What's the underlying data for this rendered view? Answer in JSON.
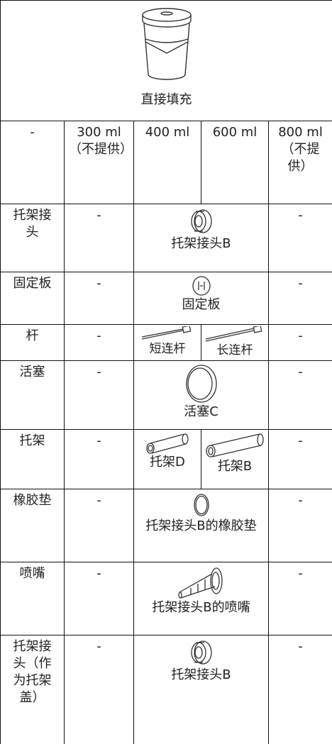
{
  "header": {
    "caption": "直接填充"
  },
  "table": {
    "columns": [
      "-",
      "300 ml（不提供）",
      "400 ml",
      "600 ml",
      "800 ml（不提供）"
    ],
    "rows": [
      {
        "label": "托架接头",
        "col_300": "-",
        "items": [
          "托架接头B"
        ],
        "col_800": "-"
      },
      {
        "label": "固定板",
        "col_300": "-",
        "items": [
          "固定板"
        ],
        "col_800": "-"
      },
      {
        "label": "杆",
        "col_300": "-",
        "items": [
          "短连杆",
          "长连杆"
        ],
        "col_800": "-"
      },
      {
        "label": "活塞",
        "col_300": "-",
        "items": [
          "活塞C"
        ],
        "col_800": "-"
      },
      {
        "label": "托架",
        "col_300": "-",
        "items": [
          "托架D",
          "托架B"
        ],
        "col_800": "-"
      },
      {
        "label": "橡胶垫",
        "col_300": "-",
        "items": [
          "托架接头B的橡胶垫"
        ],
        "col_800": "-"
      },
      {
        "label": "喷嘴",
        "col_300": "-",
        "items": [
          "托架接头B的喷嘴"
        ],
        "col_800": "-"
      },
      {
        "label": "托架接头（作为托架盖）",
        "col_300": "-",
        "items": [
          "托架接头B"
        ],
        "col_800": "-"
      }
    ]
  }
}
